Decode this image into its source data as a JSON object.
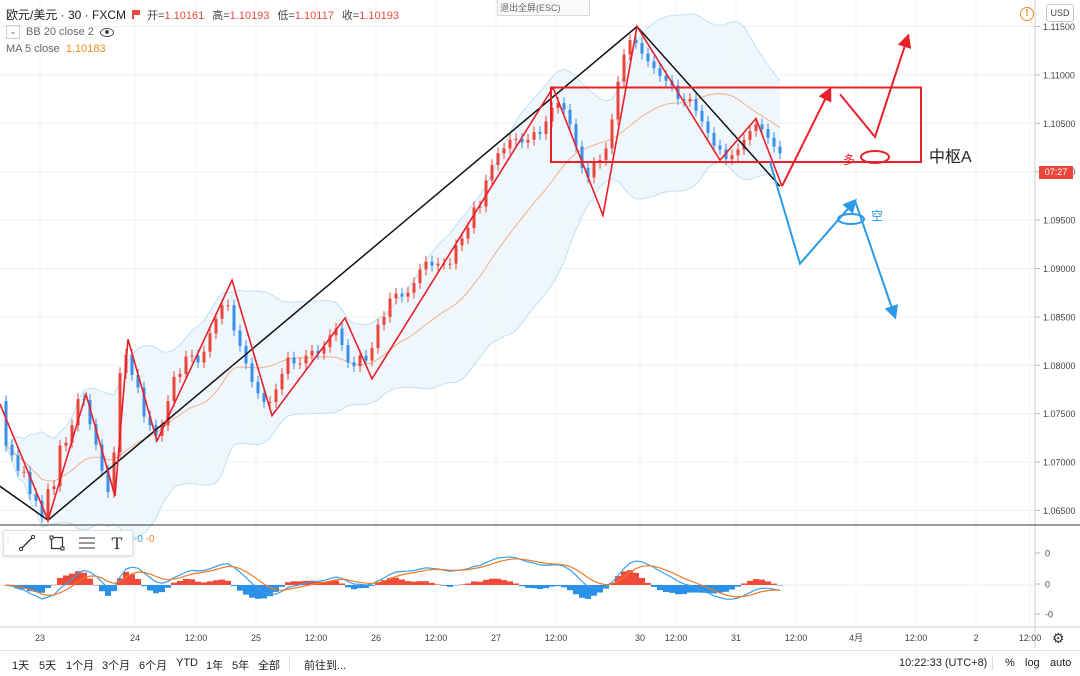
{
  "header": {
    "symbol": "欧元/美元 · 30 · FXCM",
    "ohlc": [
      {
        "label": "开=",
        "value": "1.10161"
      },
      {
        "label": "高=",
        "value": "1.10193"
      },
      {
        "label": "低=",
        "value": "1.10117"
      },
      {
        "label": "收=",
        "value": "1.10193"
      }
    ],
    "bb_label": "BB 20 close 2",
    "ma_label": "MA 5 close",
    "ma_value": "1.10183",
    "esc_button": "退出全屏(ESC)",
    "currency": "USD",
    "warn_glyph": "!"
  },
  "colors": {
    "up": "#e8453c",
    "down": "#3a8fe8",
    "zigzag": "#e8202a",
    "trend": "#111111",
    "macd_line": "#3aa0e8",
    "signal_line": "#f07a2a",
    "hist_up": "#f04a3a",
    "hist_down": "#2a90e8",
    "arrow_blue": "#2a9be8"
  },
  "annotations": {
    "zhongshu_label": "中枢A",
    "long_label": "多",
    "short_label": "空"
  },
  "current_price_tag": "07:27",
  "macd_panel": {
    "label1": "-0",
    "label2": "-0",
    "ticks": [
      "0",
      "0",
      "-0"
    ]
  },
  "toolbar": {
    "tools": [
      "trend-line-tool",
      "rectangle-tool",
      "fib-tool",
      "text-tool"
    ],
    "text_tool_glyph": "T"
  },
  "bottom_bar": {
    "ranges": [
      "1天",
      "5天",
      "1个月",
      "3个月",
      "6个月",
      "YTD",
      "1年",
      "5年",
      "全部"
    ],
    "goto": "前往到...",
    "clock": "10:22:33 (UTC+8)",
    "percent": "%",
    "log": "log",
    "auto": "auto"
  },
  "chart_data": {
    "type": "candlestick",
    "title": "欧元/美元 · 30 · FXCM",
    "y_ticks": [
      "1.11500",
      "1.11000",
      "1.10500",
      "1.10000",
      "1.09500",
      "1.09000",
      "1.08500",
      "1.08000",
      "1.07500",
      "1.07000",
      "1.06500"
    ],
    "x_ticks": [
      "23",
      "24",
      "12:00",
      "25",
      "12:00",
      "26",
      "12:00",
      "27",
      "12:00",
      "30",
      "12:00",
      "31",
      "12:00",
      "4月",
      "12:00",
      "2",
      "12:00"
    ],
    "ylim": [
      1.0635,
      1.1165
    ],
    "zigzag_red": [
      [
        0,
        1.076
      ],
      [
        48,
        1.064
      ],
      [
        86,
        1.077
      ],
      [
        115,
        1.0665
      ],
      [
        128,
        1.0827
      ],
      [
        157,
        1.0722
      ],
      [
        232,
        1.0888
      ],
      [
        272,
        1.0748
      ],
      [
        345,
        1.0849
      ],
      [
        372,
        1.0786
      ],
      [
        553,
        1.1087
      ],
      [
        603,
        1.0955
      ],
      [
        637,
        1.115
      ],
      [
        720,
        1.1012
      ],
      [
        756,
        1.1055
      ],
      [
        782,
        1.0985
      ]
    ],
    "trend_black": [
      [
        0,
        1.0675
      ],
      [
        48,
        1.064
      ],
      [
        637,
        1.115
      ],
      [
        780,
        1.0985
      ]
    ],
    "zhongshu_box": {
      "top": 1.1087,
      "bottom": 1.101
    },
    "projection_red": [
      [
        782,
        1.0985
      ],
      [
        830,
        1.1085
      ],
      [
        840,
        1.108
      ],
      [
        875,
        1.1036
      ],
      [
        908,
        1.114
      ]
    ],
    "projection_blue": [
      [
        770,
        1.101
      ],
      [
        800,
        1.0905
      ],
      [
        855,
        1.097
      ],
      [
        895,
        1.085
      ]
    ],
    "candles": [
      [
        6,
        1.0763,
        1.0717
      ],
      [
        12,
        1.0718,
        1.0707
      ],
      [
        18,
        1.0707,
        1.0691
      ],
      [
        24,
        1.069,
        1.069
      ],
      [
        30,
        1.069,
        1.0667
      ],
      [
        36,
        1.0667,
        1.066
      ],
      [
        42,
        1.066,
        1.0643
      ],
      [
        48,
        1.0643,
        1.0672
      ],
      [
        54,
        1.0672,
        1.0675
      ],
      [
        60,
        1.0675,
        1.0717
      ],
      [
        66,
        1.0717,
        1.072
      ],
      [
        72,
        1.072,
        1.0738
      ],
      [
        78,
        1.0738,
        1.0765
      ],
      [
        84,
        1.0765,
        1.0764
      ],
      [
        90,
        1.0764,
        1.0739
      ],
      [
        96,
        1.0739,
        1.0718
      ],
      [
        102,
        1.0718,
        1.0691
      ],
      [
        108,
        1.0691,
        1.0669
      ],
      [
        114,
        1.0669,
        1.071
      ],
      [
        120,
        1.071,
        1.0792
      ],
      [
        126,
        1.0792,
        1.0811
      ],
      [
        132,
        1.0811,
        1.079
      ],
      [
        138,
        1.079,
        1.0777
      ],
      [
        144,
        1.0777,
        1.0747
      ],
      [
        150,
        1.0747,
        1.0738
      ],
      [
        156,
        1.0738,
        1.0727
      ],
      [
        162,
        1.0727,
        1.0738
      ],
      [
        168,
        1.0738,
        1.0763
      ],
      [
        174,
        1.0763,
        1.0788
      ],
      [
        180,
        1.0788,
        1.0791
      ],
      [
        186,
        1.0791,
        1.0809
      ],
      [
        192,
        1.0809,
        1.081
      ],
      [
        198,
        1.081,
        1.0803
      ],
      [
        204,
        1.0803,
        1.0814
      ],
      [
        210,
        1.0814,
        1.0833
      ],
      [
        216,
        1.0833,
        1.0848
      ],
      [
        222,
        1.0848,
        1.0862
      ],
      [
        228,
        1.0862,
        1.0862
      ],
      [
        234,
        1.0862,
        1.0836
      ],
      [
        240,
        1.0836,
        1.082
      ],
      [
        246,
        1.082,
        1.0802
      ],
      [
        252,
        1.0802,
        1.0783
      ],
      [
        258,
        1.0783,
        1.0771
      ],
      [
        264,
        1.0771,
        1.0762
      ],
      [
        270,
        1.0762,
        1.0762
      ],
      [
        276,
        1.0762,
        1.0775
      ],
      [
        282,
        1.0775,
        1.0791
      ],
      [
        288,
        1.0791,
        1.0808
      ],
      [
        294,
        1.0808,
        1.0802
      ],
      [
        300,
        1.0802,
        1.0802
      ],
      [
        306,
        1.0802,
        1.081
      ],
      [
        312,
        1.081,
        1.0815
      ],
      [
        318,
        1.0815,
        1.0812
      ],
      [
        324,
        1.0812,
        1.0819
      ],
      [
        330,
        1.0819,
        1.0831
      ],
      [
        336,
        1.0831,
        1.0838
      ],
      [
        342,
        1.0838,
        1.0821
      ],
      [
        348,
        1.0821,
        1.0803
      ],
      [
        354,
        1.0803,
        1.0799
      ],
      [
        360,
        1.0799,
        1.081
      ],
      [
        366,
        1.081,
        1.0805
      ],
      [
        372,
        1.0805,
        1.0818
      ],
      [
        378,
        1.0818,
        1.0842
      ],
      [
        384,
        1.0842,
        1.085
      ],
      [
        390,
        1.085,
        1.0869
      ],
      [
        396,
        1.0869,
        1.0874
      ],
      [
        402,
        1.0874,
        1.0871
      ],
      [
        408,
        1.0871,
        1.0875
      ],
      [
        414,
        1.0875,
        1.0885
      ],
      [
        420,
        1.0885,
        1.0899
      ],
      [
        426,
        1.0899,
        1.0907
      ],
      [
        432,
        1.0907,
        1.0903
      ],
      [
        438,
        1.0903,
        1.0905
      ],
      [
        444,
        1.0905,
        1.0905
      ],
      [
        450,
        1.0905,
        1.0905
      ],
      [
        456,
        1.0905,
        1.0924
      ],
      [
        462,
        1.0924,
        1.0931
      ],
      [
        468,
        1.0931,
        1.0942
      ],
      [
        474,
        1.0942,
        1.0963
      ],
      [
        480,
        1.0963,
        1.0964
      ],
      [
        486,
        1.0964,
        1.0991
      ],
      [
        492,
        1.0991,
        1.1007
      ],
      [
        498,
        1.1007,
        1.1019
      ],
      [
        504,
        1.1019,
        1.1024
      ],
      [
        510,
        1.1024,
        1.1033
      ],
      [
        516,
        1.1033,
        1.1034
      ],
      [
        522,
        1.1034,
        1.103
      ],
      [
        528,
        1.103,
        1.1033
      ],
      [
        534,
        1.1033,
        1.1041
      ],
      [
        540,
        1.1041,
        1.1039
      ],
      [
        546,
        1.1039,
        1.1052
      ],
      [
        552,
        1.1052,
        1.1066
      ],
      [
        558,
        1.1066,
        1.1071
      ],
      [
        564,
        1.1071,
        1.1064
      ],
      [
        570,
        1.1064,
        1.1049
      ],
      [
        576,
        1.1049,
        1.1026
      ],
      [
        582,
        1.1026,
        1.1004
      ],
      [
        588,
        1.1004,
        1.0994
      ],
      [
        594,
        1.0994,
        1.1009
      ],
      [
        600,
        1.1009,
        1.1012
      ],
      [
        606,
        1.1012,
        1.1024
      ],
      [
        612,
        1.1024,
        1.1054
      ],
      [
        618,
        1.1054,
        1.1093
      ],
      [
        624,
        1.1093,
        1.1121
      ],
      [
        630,
        1.1121,
        1.1136
      ],
      [
        636,
        1.1136,
        1.1133
      ],
      [
        642,
        1.1133,
        1.1122
      ],
      [
        648,
        1.1122,
        1.1114
      ],
      [
        654,
        1.1114,
        1.1107
      ],
      [
        660,
        1.1107,
        1.1099
      ],
      [
        666,
        1.1099,
        1.1094
      ],
      [
        672,
        1.1094,
        1.1089
      ],
      [
        678,
        1.1089,
        1.1075
      ],
      [
        684,
        1.1075,
        1.1073
      ],
      [
        690,
        1.1073,
        1.1075
      ],
      [
        696,
        1.1075,
        1.1063
      ],
      [
        702,
        1.1063,
        1.1052
      ],
      [
        708,
        1.1052,
        1.104
      ],
      [
        714,
        1.104,
        1.1027
      ],
      [
        720,
        1.1027,
        1.1023
      ],
      [
        726,
        1.1023,
        1.1013
      ],
      [
        732,
        1.1013,
        1.1017
      ],
      [
        738,
        1.1017,
        1.1023
      ],
      [
        744,
        1.1023,
        1.1033
      ],
      [
        750,
        1.1033,
        1.1042
      ],
      [
        756,
        1.1042,
        1.1049
      ],
      [
        762,
        1.1049,
        1.1044
      ],
      [
        768,
        1.1044,
        1.1035
      ],
      [
        774,
        1.1035,
        1.1026
      ],
      [
        780,
        1.1026,
        1.1019
      ]
    ]
  }
}
